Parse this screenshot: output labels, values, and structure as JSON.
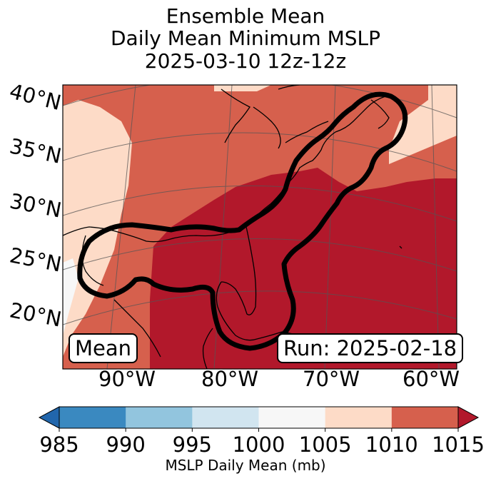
{
  "title": {
    "line1": "Ensemble Mean",
    "line2": "Daily Mean Minimum MSLP",
    "line3": "2025-03-10 12z-12z"
  },
  "map": {
    "lat_labels": [
      "40°N",
      "35°N",
      "30°N",
      "25°N",
      "20°N"
    ],
    "lon_labels": [
      "90°W",
      "80°W",
      "70°W",
      "60°W"
    ],
    "corner_left_label": "Mean",
    "corner_right_label": "Run: 2025-02-18",
    "outline_color": "#000000"
  },
  "colorbar": {
    "title": "MSLP Daily Mean (mb)",
    "ticks": [
      "985",
      "990",
      "995",
      "1000",
      "1005",
      "1010",
      "1015"
    ],
    "colors": [
      "#3a89c0",
      "#92c5de",
      "#d1e5f0",
      "#f7f7f7",
      "#fddbc7",
      "#d6604d",
      "#b2182b",
      "#2166ac"
    ],
    "under_color": "#2166ac",
    "over_color": "#b2182b"
  }
}
